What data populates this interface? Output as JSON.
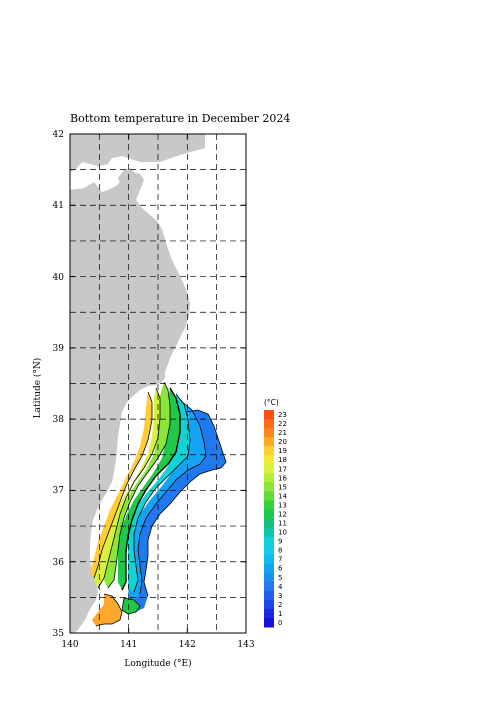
{
  "title": "Bottom temperature in December 2024",
  "axes": {
    "x_label": "Longitude (°E)",
    "y_label": "Latitude (°N)",
    "x_ticks": [
      "140",
      "141",
      "142",
      "143"
    ],
    "y_ticks": [
      "35",
      "36",
      "37",
      "38",
      "39",
      "40",
      "41",
      "42"
    ],
    "x_range": [
      140,
      143
    ],
    "y_range": [
      35,
      42
    ],
    "grid": "dashed every 0.5°"
  },
  "colorbar": {
    "unit": "(°C)",
    "labels": [
      "23",
      "22",
      "21",
      "20",
      "19",
      "18",
      "17",
      "16",
      "15",
      "14",
      "13",
      "12",
      "11",
      "10",
      "9",
      "8",
      "7",
      "6",
      "5",
      "4",
      "3",
      "2",
      "1",
      "0"
    ],
    "colors": [
      "#ff4f16",
      "#ff6a1b",
      "#ff8723",
      "#ffa82c",
      "#ffcd33",
      "#f4e838",
      "#d9f13a",
      "#b4ee39",
      "#8be63a",
      "#5fdc3a",
      "#35d13a",
      "#20c84a",
      "#15c076",
      "#10c8a9",
      "#11d2d4",
      "#14c9ec",
      "#0fb8f2",
      "#14a4f3",
      "#1c8ff1",
      "#2079ef",
      "#2060ec",
      "#1e45e8",
      "#1a2ae4",
      "#1410df"
    ]
  },
  "land_color": "#c8c8c8",
  "ocean_color": "#ffffff"
}
